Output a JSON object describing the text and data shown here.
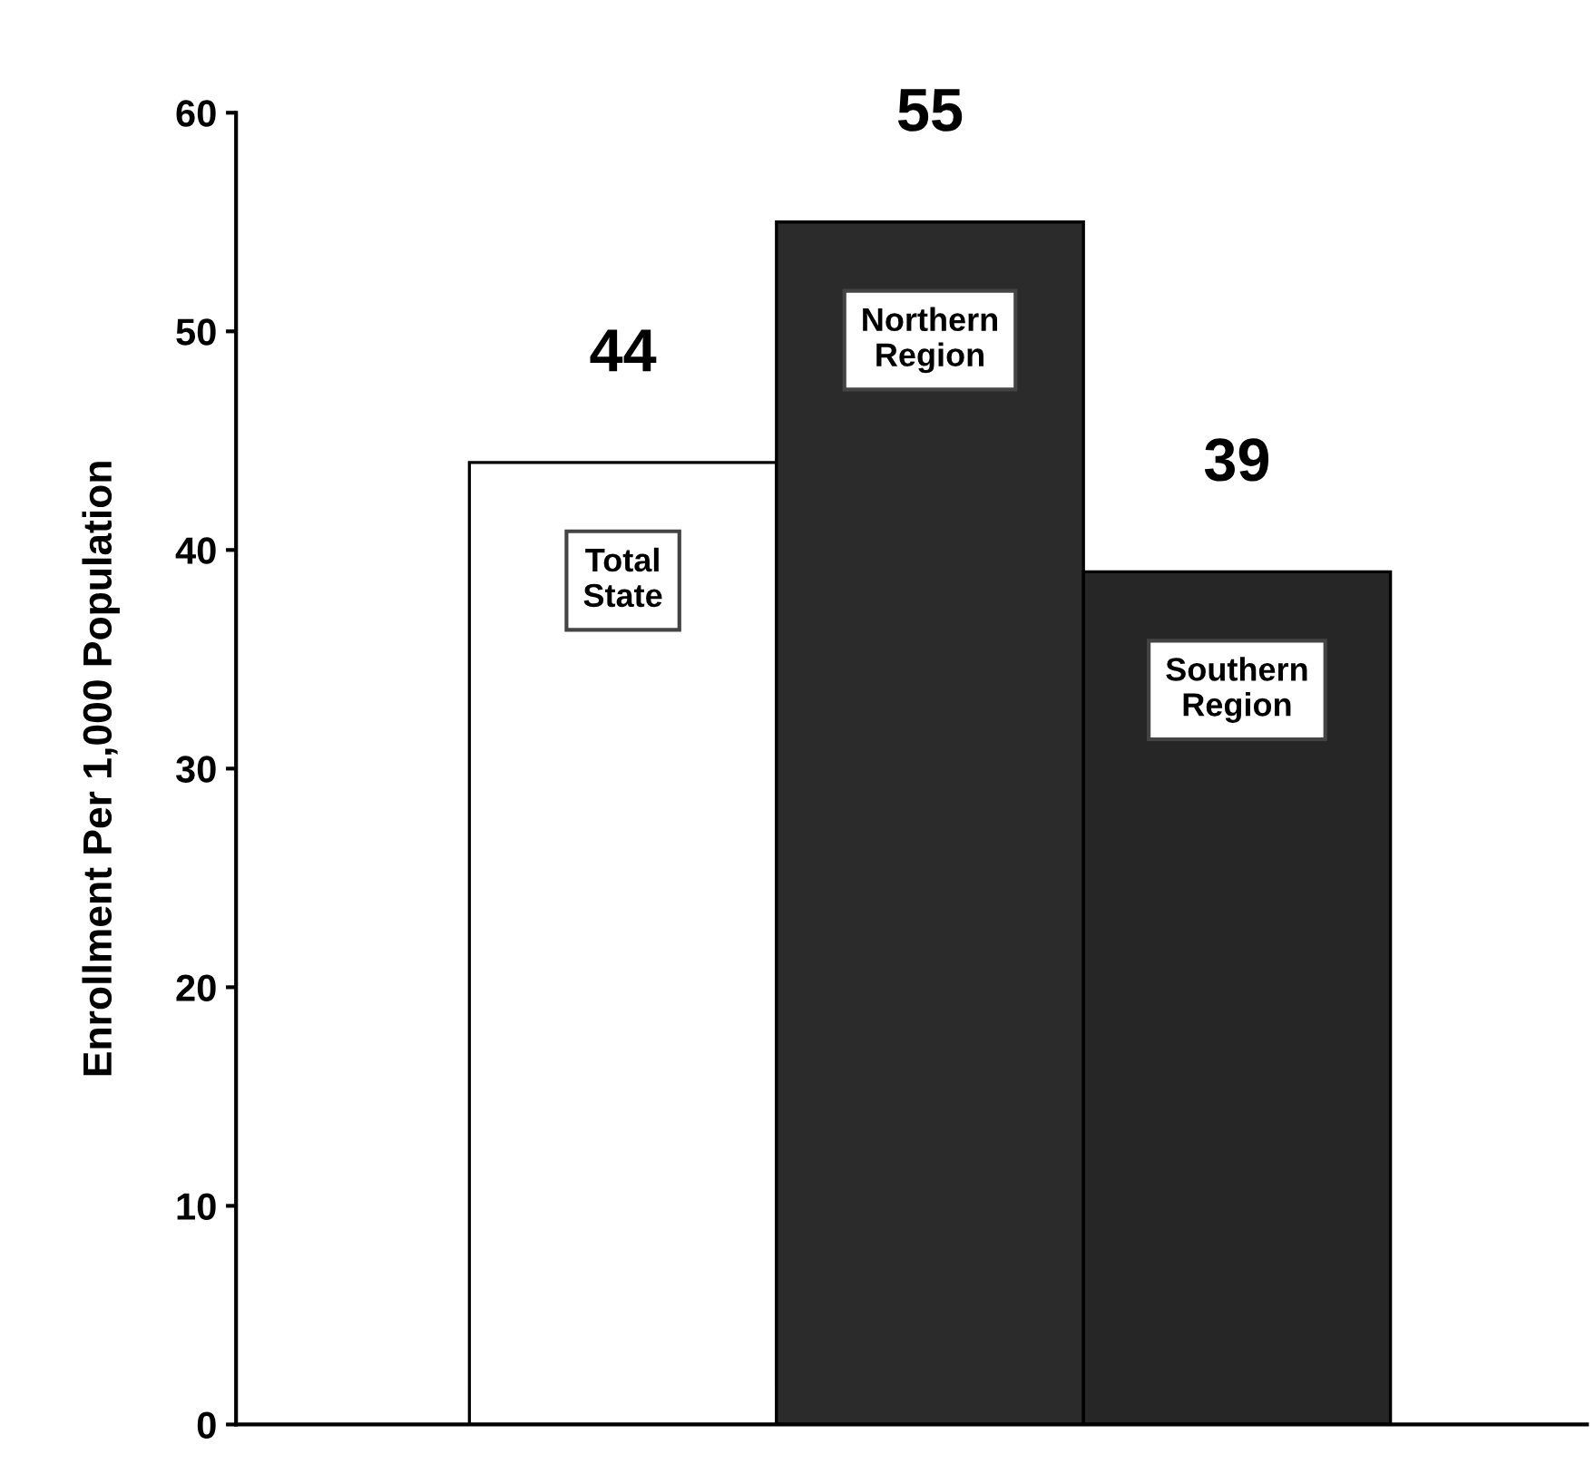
{
  "chart_data": {
    "type": "bar",
    "ylabel": "Enrollment Per 1,000 Population",
    "categories": [
      "Total State",
      "Northern Region",
      "Southern Region"
    ],
    "values": [
      44,
      55,
      39
    ],
    "colors": [
      "#ffffff",
      "#2b2b2b",
      "#262626"
    ],
    "ylim": [
      0,
      60
    ],
    "yticks": [
      0,
      10,
      20,
      30,
      40,
      50,
      60
    ],
    "data_labels": true,
    "grid": false,
    "legend": false,
    "tick_labels": "y"
  }
}
